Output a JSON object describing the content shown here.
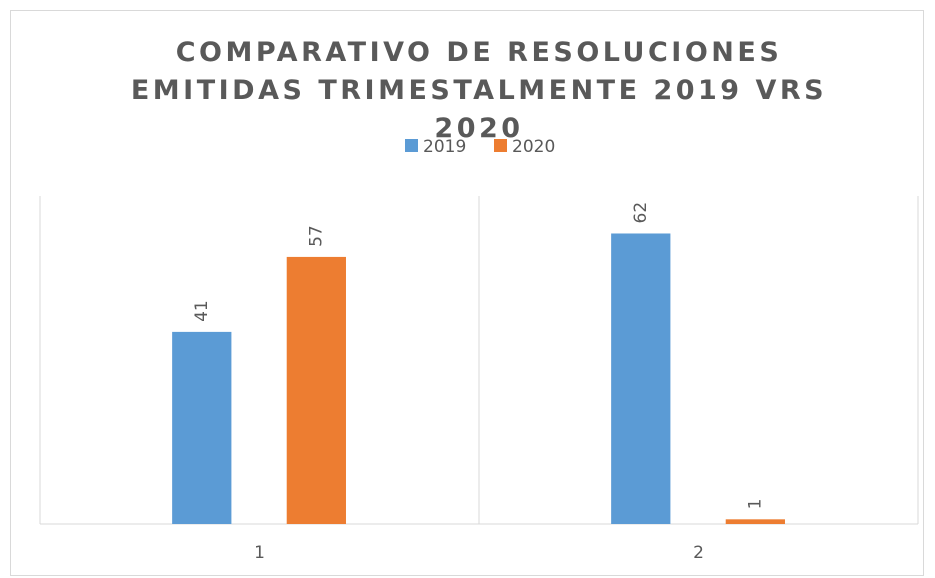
{
  "chart_data": {
    "type": "bar",
    "title": "COMPARATIVO DE RESOLUCIONES EMITIDAS TRIMESTALMENTE 2019 VRS 2020",
    "categories": [
      "1",
      "2"
    ],
    "series": [
      {
        "name": "2019",
        "color": "#5b9bd5",
        "values": [
          41,
          62
        ]
      },
      {
        "name": "2020",
        "color": "#ed7d31",
        "values": [
          57,
          1
        ]
      }
    ],
    "ylim": [
      0,
      70
    ],
    "legend": "top"
  }
}
